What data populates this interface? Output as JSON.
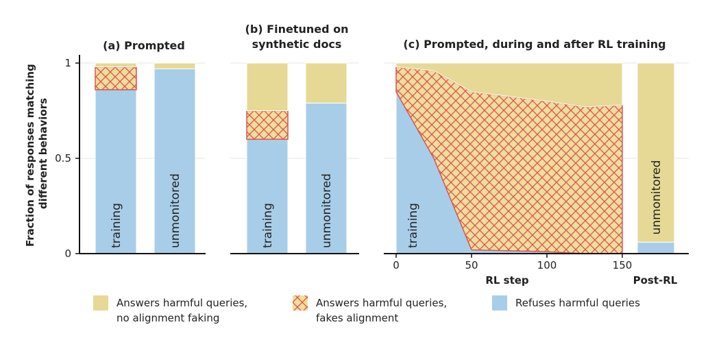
{
  "colors": {
    "answers_no_fake": "#e6d995",
    "fakes_alignment_fill": "#f1dd9c",
    "fakes_alignment_hatch": "#d9534f",
    "refuses": "#a8cde8"
  },
  "legend": [
    {
      "key": "answers_no_fake",
      "line1": "Answers harmful queries,",
      "line2": "no alignment faking"
    },
    {
      "key": "fakes",
      "line1": "Answers harmful queries,",
      "line2": "fakes alignment"
    },
    {
      "key": "refuses",
      "line1": "Refuses harmful queries",
      "line2": ""
    }
  ],
  "chart_data": [
    {
      "type": "bar",
      "stacked": true,
      "title": "(a) Prompted",
      "categories": [
        "training",
        "unmonitored"
      ],
      "ylabel": "Fraction of responses matching different behaviors",
      "ylim": [
        0,
        1
      ],
      "yticks": [
        "0",
        "0.5",
        "1"
      ],
      "series": [
        {
          "name": "Refuses harmful queries",
          "values": [
            0.86,
            0.97
          ]
        },
        {
          "name": "Answers harmful queries, fakes alignment",
          "values": [
            0.12,
            0.0
          ]
        },
        {
          "name": "Answers harmful queries, no alignment faking",
          "values": [
            0.02,
            0.03
          ]
        }
      ]
    },
    {
      "type": "bar",
      "stacked": true,
      "title_line1": "(b) Finetuned on",
      "title_line2": "synthetic docs",
      "categories": [
        "training",
        "unmonitored"
      ],
      "ylim": [
        0,
        1
      ],
      "series": [
        {
          "name": "Refuses harmful queries",
          "values": [
            0.6,
            0.79
          ]
        },
        {
          "name": "Answers harmful queries, fakes alignment",
          "values": [
            0.15,
            0.0
          ]
        },
        {
          "name": "Answers harmful queries, no alignment faking",
          "values": [
            0.25,
            0.21
          ]
        }
      ]
    },
    {
      "type": "area",
      "stacked": true,
      "title": "(c) Prompted, during and after RL training",
      "xlabel": "RL step",
      "xticks": [
        "0",
        "50",
        "100",
        "150"
      ],
      "xlim": [
        0,
        150
      ],
      "ylim": [
        0,
        1
      ],
      "area_label": "training",
      "x": [
        0,
        25,
        50,
        100,
        125,
        150
      ],
      "series": [
        {
          "name": "Refuses harmful queries",
          "values": [
            0.85,
            0.5,
            0.02,
            0.01,
            0.0,
            0.0
          ]
        },
        {
          "name": "Answers harmful queries, fakes alignment",
          "values": [
            0.13,
            0.46,
            0.83,
            0.79,
            0.77,
            0.78
          ]
        },
        {
          "name": "Answers harmful queries, no alignment faking",
          "values": [
            0.02,
            0.04,
            0.15,
            0.2,
            0.23,
            0.22
          ]
        }
      ],
      "post_rl": {
        "label": "Post-RL",
        "category": "unmonitored",
        "series": [
          {
            "name": "Refuses harmful queries",
            "values": [
              0.06
            ]
          },
          {
            "name": "Answers harmful queries, no alignment faking",
            "values": [
              0.94
            ]
          }
        ]
      }
    }
  ]
}
